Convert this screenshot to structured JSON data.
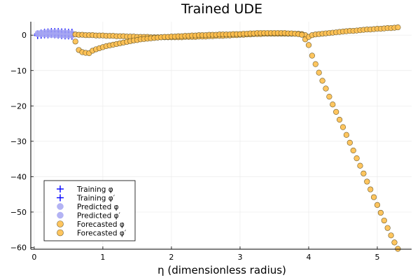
{
  "chart_data": {
    "type": "scatter",
    "title": "Trained UDE",
    "xlabel": "η (dimensionless radius)",
    "ylabel": "",
    "xlim": [
      -0.05,
      5.5
    ],
    "ylim": [
      -60.5,
      3.8
    ],
    "x_ticks": [
      0,
      1,
      2,
      3,
      4,
      5
    ],
    "y_ticks": [
      0,
      -10,
      -20,
      -30,
      -40,
      -50,
      -60
    ],
    "x_tick_labels": [
      "0",
      "1",
      "2",
      "3",
      "4",
      "5"
    ],
    "y_tick_labels": [
      "0",
      "−10",
      "−20",
      "−30",
      "−40",
      "−50",
      "−60"
    ],
    "grid": true,
    "legend_position": "bottom-left",
    "colors": {
      "training": "#0000ff",
      "predicted": "#a6a6f2",
      "forecasted": "#ffbf4d",
      "forecasted_edge": "#6b5a2a",
      "grid": "#ebebeb"
    },
    "series": [
      {
        "name": "Training φ",
        "marker": "plus",
        "x": [
          0.05,
          0.1,
          0.15,
          0.2,
          0.25,
          0.3,
          0.35,
          0.4,
          0.45,
          0.5,
          0.55
        ],
        "y": [
          0.3,
          0.6,
          0.8,
          0.9,
          1.0,
          1.0,
          1.0,
          0.9,
          0.9,
          0.8,
          0.8
        ]
      },
      {
        "name": "Training φ′",
        "marker": "plus",
        "x": [
          0.05,
          0.1,
          0.15,
          0.2,
          0.25,
          0.3,
          0.35,
          0.4,
          0.45,
          0.5,
          0.55
        ],
        "y": [
          -0.1,
          0.0,
          0.1,
          0.1,
          0.2,
          0.1,
          0.0,
          -0.1,
          -0.2,
          -0.2,
          -0.3
        ]
      },
      {
        "name": "Predicted φ",
        "marker": "circle",
        "x": [
          0.05,
          0.1,
          0.15,
          0.2,
          0.25,
          0.3,
          0.35,
          0.4,
          0.45,
          0.5,
          0.55
        ],
        "y": [
          0.6,
          0.7,
          0.8,
          0.9,
          0.9,
          0.9,
          0.9,
          0.8,
          0.8,
          0.7,
          0.6
        ]
      },
      {
        "name": "Predicted φ′",
        "marker": "circle",
        "x": [
          0.05,
          0.1,
          0.15,
          0.2,
          0.25,
          0.3,
          0.35,
          0.4,
          0.45,
          0.5,
          0.55
        ],
        "y": [
          0.2,
          0.2,
          0.1,
          0.1,
          0.0,
          0.0,
          -0.1,
          -0.1,
          -0.2,
          -0.2,
          -0.2
        ]
      },
      {
        "name": "Forecasted φ",
        "marker": "circle",
        "x": [
          0.6,
          0.65,
          0.7,
          0.75,
          0.8,
          0.85,
          0.9,
          0.95,
          1.0,
          1.05,
          1.1,
          1.15,
          1.2,
          1.25,
          1.3,
          1.35,
          1.4,
          1.45,
          1.5,
          1.55,
          1.6,
          1.65,
          1.7,
          1.75,
          1.8,
          1.85,
          1.9,
          1.95,
          2.0,
          2.05,
          2.1,
          2.15,
          2.2,
          2.25,
          2.3,
          2.35,
          2.4,
          2.45,
          2.5,
          2.55,
          2.6,
          2.65,
          2.7,
          2.75,
          2.8,
          2.85,
          2.9,
          2.95,
          3.0,
          3.05,
          3.1,
          3.15,
          3.2,
          3.25,
          3.3,
          3.35,
          3.4,
          3.45,
          3.5,
          3.55,
          3.6,
          3.65,
          3.7,
          3.75,
          3.8,
          3.85,
          3.9,
          3.95,
          4.0,
          4.05,
          4.1,
          4.15,
          4.2,
          4.25,
          4.3,
          4.35,
          4.4,
          4.45,
          4.5,
          4.55,
          4.6,
          4.65,
          4.7,
          4.75,
          4.8,
          4.85,
          4.9,
          4.95,
          5.0,
          5.05,
          5.1,
          5.15,
          5.2,
          5.25,
          5.3
        ],
        "y": [
          0.2,
          0.1,
          0.1,
          0.0,
          0.0,
          0.0,
          -0.1,
          -0.1,
          -0.1,
          -0.2,
          -0.2,
          -0.2,
          -0.3,
          -0.3,
          -0.3,
          -0.4,
          -0.4,
          -0.4,
          -0.5,
          -0.5,
          -0.5,
          -0.5,
          -0.6,
          -0.6,
          -0.6,
          -0.6,
          -0.6,
          -0.6,
          -0.6,
          -0.6,
          -0.6,
          -0.6,
          -0.5,
          -0.5,
          -0.5,
          -0.5,
          -0.4,
          -0.4,
          -0.4,
          -0.3,
          -0.3,
          -0.2,
          -0.2,
          -0.2,
          -0.1,
          -0.1,
          0.0,
          0.0,
          0.1,
          0.1,
          0.2,
          0.2,
          0.3,
          0.3,
          0.3,
          0.4,
          0.4,
          0.4,
          0.4,
          0.4,
          0.4,
          0.4,
          0.4,
          0.4,
          0.4,
          0.4,
          0.3,
          0.0,
          -2.8,
          -5.8,
          -8.2,
          -10.6,
          -12.9,
          -15.1,
          -17.4,
          -19.6,
          -21.7,
          -23.9,
          -26.0,
          -28.2,
          -30.4,
          -32.6,
          -34.8,
          -36.9,
          -39.1,
          -41.4,
          -43.6,
          -45.8,
          -48.0,
          -50.2,
          -52.4,
          -54.5,
          -56.6,
          -58.6,
          -60.4
        ]
      },
      {
        "name": "Forecasted φ′",
        "marker": "circle",
        "x": [
          0.6,
          0.65,
          0.7,
          0.75,
          0.8,
          0.85,
          0.9,
          0.95,
          1.0,
          1.05,
          1.1,
          1.15,
          1.2,
          1.25,
          1.3,
          1.35,
          1.4,
          1.45,
          1.5,
          1.55,
          1.6,
          1.65,
          1.7,
          1.75,
          1.8,
          1.85,
          1.9,
          1.95,
          2.0,
          2.05,
          2.1,
          2.15,
          2.2,
          2.25,
          2.3,
          2.35,
          2.4,
          2.45,
          2.5,
          2.55,
          2.6,
          2.65,
          2.7,
          2.75,
          2.8,
          2.85,
          2.9,
          2.95,
          3.0,
          3.05,
          3.1,
          3.15,
          3.2,
          3.25,
          3.3,
          3.35,
          3.4,
          3.45,
          3.5,
          3.55,
          3.6,
          3.65,
          3.7,
          3.75,
          3.8,
          3.85,
          3.9,
          3.95,
          4.0,
          4.05,
          4.1,
          4.15,
          4.2,
          4.25,
          4.3,
          4.35,
          4.4,
          4.45,
          4.5,
          4.55,
          4.6,
          4.65,
          4.7,
          4.75,
          4.8,
          4.85,
          4.9,
          4.95,
          5.0,
          5.05,
          5.1,
          5.15,
          5.2,
          5.25,
          5.3
        ],
        "y": [
          -1.8,
          -4.2,
          -4.8,
          -5.0,
          -5.1,
          -4.4,
          -4.0,
          -3.7,
          -3.4,
          -3.1,
          -2.9,
          -2.7,
          -2.5,
          -2.3,
          -2.1,
          -1.9,
          -1.7,
          -1.5,
          -1.4,
          -1.2,
          -1.1,
          -1.0,
          -0.9,
          -0.8,
          -0.7,
          -0.6,
          -0.5,
          -0.5,
          -0.4,
          -0.4,
          -0.3,
          -0.3,
          -0.2,
          -0.2,
          -0.1,
          -0.1,
          0.0,
          0.0,
          0.0,
          0.1,
          0.1,
          0.1,
          0.2,
          0.2,
          0.2,
          0.2,
          0.3,
          0.3,
          0.3,
          0.4,
          0.4,
          0.5,
          0.5,
          0.6,
          0.6,
          0.6,
          0.6,
          0.6,
          0.6,
          0.6,
          0.6,
          0.6,
          0.5,
          0.5,
          0.4,
          0.3,
          0.1,
          -1.2,
          -0.5,
          0.0,
          0.2,
          0.3,
          0.4,
          0.5,
          0.6,
          0.7,
          0.8,
          0.9,
          1.0,
          1.1,
          1.2,
          1.2,
          1.3,
          1.4,
          1.5,
          1.6,
          1.6,
          1.7,
          1.8,
          1.8,
          1.9,
          2.0,
          2.0,
          2.1,
          2.2
        ]
      }
    ]
  }
}
